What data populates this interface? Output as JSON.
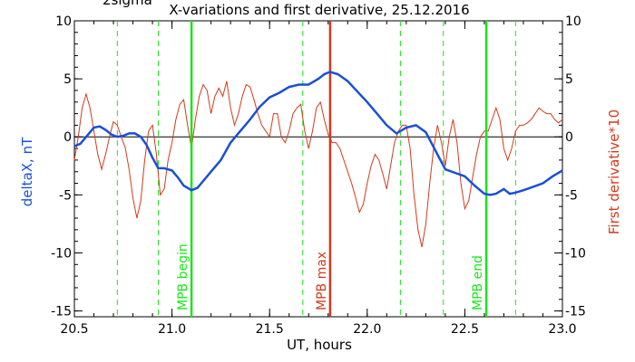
{
  "chart_data": {
    "type": "line",
    "title": "X-variations and first derivative, 25.12.2016",
    "corner_text": "2sigma",
    "xlabel": "UT, hours",
    "ylabel_left": "deltaX, nT",
    "ylabel_right": "First derivative*10",
    "xlim": [
      20.5,
      23.0
    ],
    "ylim": [
      -15.5,
      10
    ],
    "xticks": [
      "20.5",
      "21.0",
      "21.5",
      "22.0",
      "22.5",
      "23.0"
    ],
    "yticks_left": [
      "10",
      "5",
      "0",
      "-5",
      "-10",
      "-15"
    ],
    "yticks_right": [
      "10",
      "5",
      "0",
      "-5",
      "-10",
      "-15"
    ],
    "colors": {
      "deltaX": "#1a4fd6",
      "derivative": "#d23a1c",
      "mpb_edge": "#19e619",
      "mpb_max": "#d23a1c"
    },
    "vlines": [
      {
        "x": 21.1,
        "label": "MPB begin",
        "color": "#19e619"
      },
      {
        "x": 21.81,
        "label": "MPB max",
        "color": "#d23a1c"
      },
      {
        "x": 22.61,
        "label": "MPB end",
        "color": "#19e619"
      }
    ],
    "dashed_vlines": [
      20.72,
      20.93,
      21.67,
      22.17,
      22.39,
      22.76
    ],
    "series": [
      {
        "axis": "left",
        "x": [
          20.5,
          20.53,
          20.57,
          20.6,
          20.63,
          20.66,
          20.69,
          20.72,
          20.75,
          20.78,
          20.81,
          20.84,
          20.87,
          20.9,
          20.93,
          20.96,
          21.0,
          21.03,
          21.06,
          21.1,
          21.13,
          21.16,
          21.2,
          21.25,
          21.3,
          21.35,
          21.4,
          21.45,
          21.5,
          21.55,
          21.6,
          21.65,
          21.7,
          21.75,
          21.78,
          21.81,
          21.85,
          21.9,
          21.95,
          22.0,
          22.05,
          22.1,
          22.15,
          22.2,
          22.25,
          22.3,
          22.35,
          22.4,
          22.45,
          22.5,
          22.55,
          22.6,
          22.63,
          22.66,
          22.7,
          22.73,
          22.76,
          22.8,
          22.85,
          22.9,
          22.95,
          23.0
        ],
        "values": [
          -0.8,
          -0.6,
          0.2,
          0.8,
          0.9,
          0.6,
          0.2,
          0.0,
          0.1,
          0.3,
          0.3,
          0.0,
          -0.7,
          -1.8,
          -2.7,
          -2.7,
          -2.9,
          -3.5,
          -4.2,
          -4.6,
          -4.4,
          -3.8,
          -3.0,
          -2.0,
          -0.5,
          0.5,
          1.5,
          2.6,
          3.4,
          3.8,
          4.3,
          4.5,
          4.5,
          5.0,
          5.4,
          5.6,
          5.4,
          4.8,
          3.9,
          3.0,
          2.0,
          1.0,
          0.3,
          0.8,
          1.0,
          0.4,
          -1.2,
          -2.8,
          -3.1,
          -3.4,
          -4.2,
          -4.9,
          -5.0,
          -4.9,
          -4.5,
          -4.9,
          -4.8,
          -4.6,
          -4.3,
          -4.0,
          -3.4,
          -2.9
        ]
      },
      {
        "axis": "right",
        "x": [
          20.5,
          20.52,
          20.54,
          20.56,
          20.58,
          20.6,
          20.62,
          20.64,
          20.66,
          20.68,
          20.7,
          20.72,
          20.74,
          20.76,
          20.78,
          20.8,
          20.82,
          20.84,
          20.86,
          20.88,
          20.9,
          20.92,
          20.94,
          20.96,
          20.98,
          21.0,
          21.02,
          21.04,
          21.06,
          21.08,
          21.1,
          21.12,
          21.14,
          21.16,
          21.18,
          21.2,
          21.22,
          21.24,
          21.26,
          21.28,
          21.3,
          21.32,
          21.34,
          21.36,
          21.38,
          21.4,
          21.42,
          21.44,
          21.46,
          21.48,
          21.5,
          21.52,
          21.54,
          21.56,
          21.58,
          21.6,
          21.62,
          21.64,
          21.66,
          21.68,
          21.7,
          21.72,
          21.74,
          21.76,
          21.78,
          21.8,
          21.82,
          21.84,
          21.86,
          21.88,
          21.9,
          21.92,
          21.94,
          21.96,
          21.98,
          22.0,
          22.02,
          22.04,
          22.06,
          22.08,
          22.1,
          22.12,
          22.14,
          22.16,
          22.18,
          22.2,
          22.22,
          22.24,
          22.26,
          22.28,
          22.3,
          22.32,
          22.34,
          22.36,
          22.38,
          22.4,
          22.42,
          22.44,
          22.46,
          22.48,
          22.5,
          22.52,
          22.54,
          22.56,
          22.58,
          22.6,
          22.62,
          22.64,
          22.66,
          22.68,
          22.7,
          22.72,
          22.74,
          22.76,
          22.78,
          22.8,
          22.82,
          22.84,
          22.86,
          22.88,
          22.9,
          22.92,
          22.94,
          22.96,
          22.98,
          23.0
        ],
        "values": [
          -2.0,
          0.0,
          2.5,
          3.7,
          2.5,
          0.5,
          -1.5,
          -2.8,
          -1.5,
          0.0,
          1.3,
          1.0,
          0.0,
          -0.9,
          -2.8,
          -5.3,
          -7.0,
          -5.5,
          -2.0,
          0.5,
          1.0,
          -1.5,
          -5.0,
          -4.5,
          -2.0,
          -0.5,
          1.5,
          2.8,
          3.2,
          1.0,
          -1.0,
          1.5,
          3.5,
          4.5,
          4.0,
          2.0,
          3.5,
          4.2,
          3.5,
          4.8,
          2.5,
          1.0,
          2.0,
          3.5,
          4.5,
          4.3,
          3.2,
          2.0,
          1.0,
          0.5,
          0.0,
          2.0,
          2.0,
          0.0,
          -0.5,
          0.5,
          2.0,
          2.5,
          2.8,
          0.5,
          -1.0,
          0.5,
          2.5,
          3.0,
          1.5,
          0.2,
          -0.5,
          -0.5,
          -1.0,
          -2.0,
          -3.0,
          -4.0,
          -5.2,
          -6.5,
          -5.8,
          -4.0,
          -2.5,
          -1.5,
          -2.0,
          -3.2,
          -4.5,
          -2.5,
          -0.5,
          0.5,
          1.0,
          1.0,
          -1.0,
          -5.0,
          -8.0,
          -9.5,
          -7.5,
          -4.0,
          -1.0,
          1.0,
          -0.5,
          -2.5,
          0.0,
          1.5,
          -0.5,
          -4.0,
          -6.2,
          -5.5,
          -3.5,
          -1.5,
          0.0,
          0.5,
          0.5,
          1.5,
          2.5,
          1.5,
          -1.0,
          -2.0,
          -1.0,
          0.5,
          1.0,
          1.0,
          1.2,
          1.5,
          2.0,
          2.5,
          2.2,
          2.0,
          2.0,
          1.5,
          1.2,
          1.5
        ]
      }
    ]
  }
}
